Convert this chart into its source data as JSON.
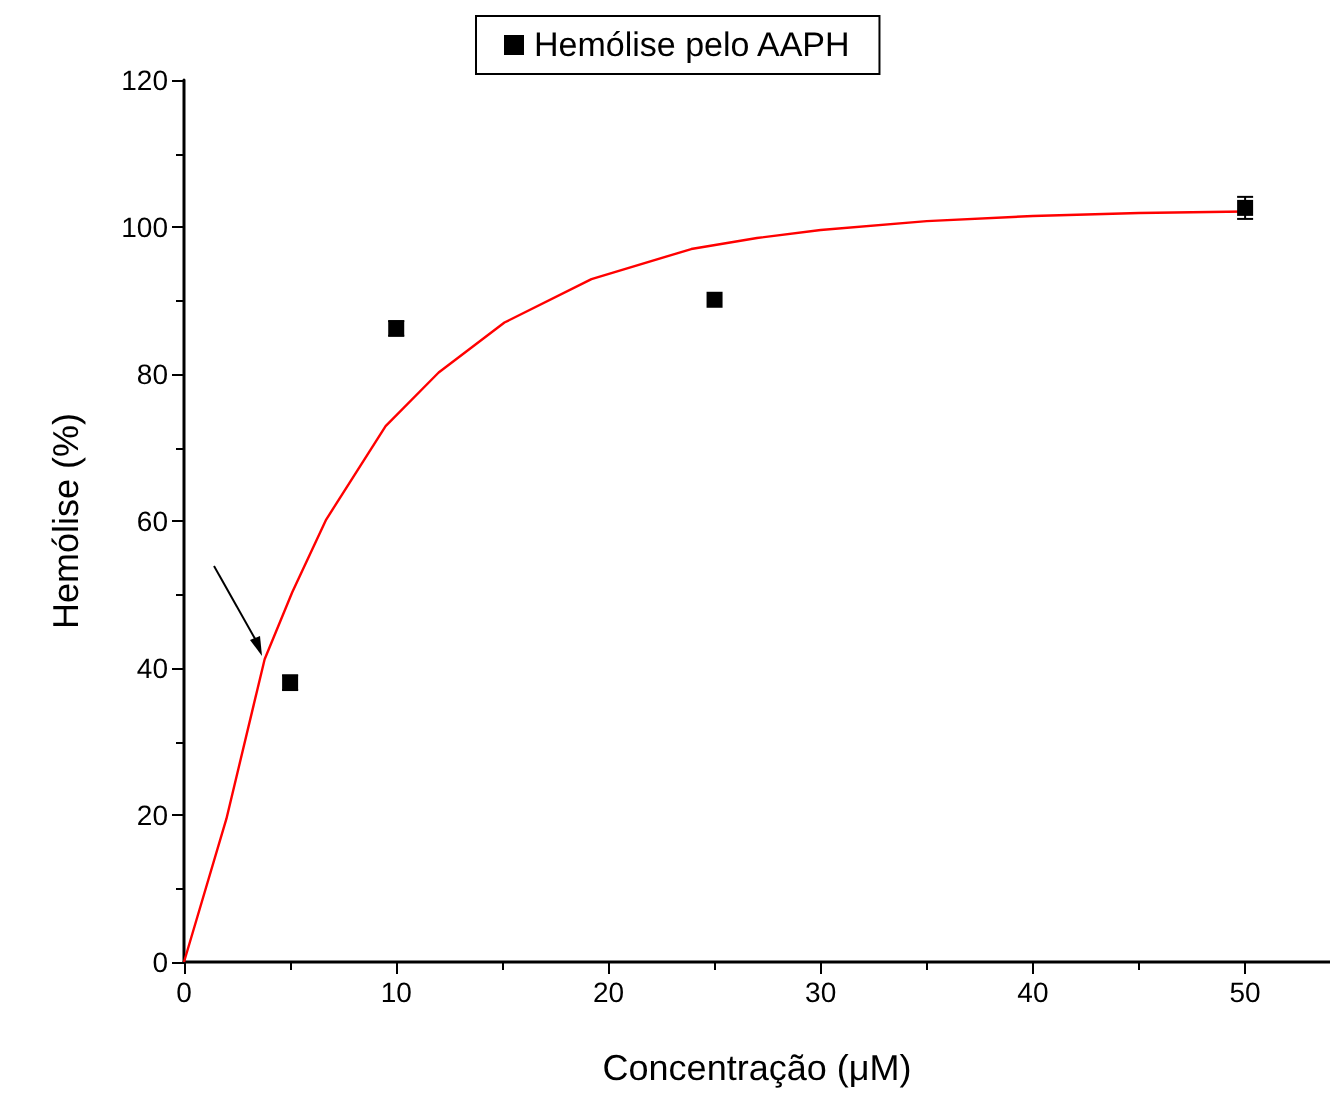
{
  "chart_data": {
    "type": "scatter",
    "xlabel": "Concentração (μM)",
    "ylabel": "Hemólise (%)",
    "xlim": [
      0,
      54
    ],
    "xticks": [
      0,
      10,
      20,
      30,
      40,
      50
    ],
    "ylim": [
      0,
      120
    ],
    "yticks": [
      0,
      20,
      40,
      60,
      80,
      100,
      120
    ],
    "grid": false,
    "legend": "top",
    "series": [
      {
        "name": "Hemólise pelo AAPH",
        "color": "#000000",
        "marker": "square",
        "x": [
          5,
          10,
          25,
          50
        ],
        "values": [
          38,
          86.2,
          90.1,
          102.6
        ],
        "errors": [
          1,
          1,
          null,
          1.5
        ]
      },
      {
        "type": "line",
        "color": "#ff0000",
        "marker": "none",
        "x": [
          0,
          2,
          3.8,
          5.1,
          6.7,
          9.5,
          12,
          15.1,
          19.2,
          23.9,
          27,
          30,
          35,
          40,
          45,
          50
        ],
        "values": [
          0,
          19.5,
          41.2,
          50.3,
          60.2,
          72.9,
          80.2,
          87,
          92.9,
          97,
          98.5,
          99.6,
          100.8,
          101.5,
          101.9,
          102.1
        ]
      }
    ]
  }
}
